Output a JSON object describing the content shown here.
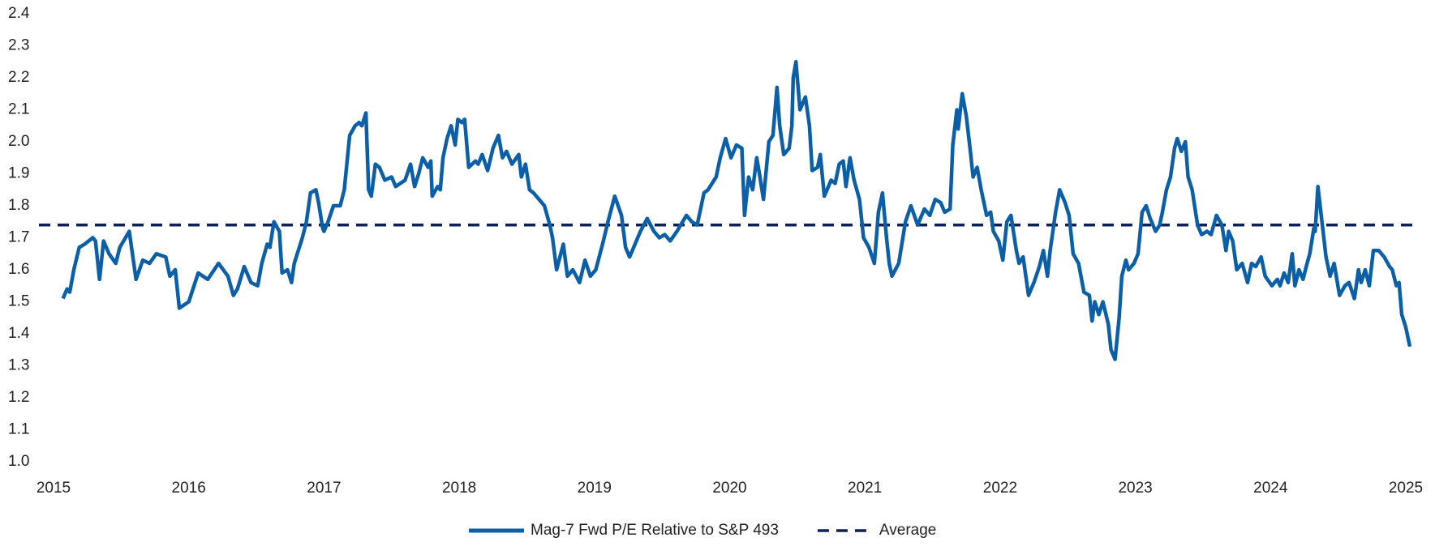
{
  "chart_data": {
    "type": "line",
    "x": [
      2015.07,
      2015.1,
      2015.12,
      2015.15,
      2015.19,
      2015.23,
      2015.29,
      2015.31,
      2015.34,
      2015.37,
      2015.41,
      2015.46,
      2015.49,
      2015.56,
      2015.61,
      2015.66,
      2015.71,
      2015.76,
      2015.83,
      2015.86,
      2015.9,
      2015.93,
      2016.0,
      2016.07,
      2016.14,
      2016.22,
      2016.29,
      2016.33,
      2016.36,
      2016.41,
      2016.46,
      2016.51,
      2016.54,
      2016.58,
      2016.6,
      2016.63,
      2016.67,
      2016.69,
      2016.73,
      2016.76,
      2016.78,
      2016.84,
      2016.87,
      2016.9,
      2016.94,
      2016.96,
      2016.99,
      2017.0,
      2017.03,
      2017.07,
      2017.12,
      2017.15,
      2017.19,
      2017.23,
      2017.26,
      2017.28,
      2017.31,
      2017.33,
      2017.35,
      2017.38,
      2017.41,
      2017.45,
      2017.5,
      2017.53,
      2017.6,
      2017.64,
      2017.67,
      2017.7,
      2017.73,
      2017.77,
      2017.79,
      2017.8,
      2017.84,
      2017.86,
      2017.88,
      2017.91,
      2017.94,
      2017.97,
      2017.99,
      2018.02,
      2018.04,
      2018.07,
      2018.12,
      2018.14,
      2018.17,
      2018.21,
      2018.25,
      2018.29,
      2018.32,
      2018.35,
      2018.39,
      2018.44,
      2018.46,
      2018.49,
      2018.52,
      2018.55,
      2018.63,
      2018.67,
      2018.69,
      2018.72,
      2018.77,
      2018.8,
      2018.84,
      2018.89,
      2018.93,
      2018.97,
      2019.01,
      2019.06,
      2019.1,
      2019.15,
      2019.2,
      2019.23,
      2019.26,
      2019.3,
      2019.34,
      2019.39,
      2019.44,
      2019.48,
      2019.52,
      2019.56,
      2019.61,
      2019.68,
      2019.72,
      2019.76,
      2019.81,
      2019.84,
      2019.9,
      2019.93,
      2019.97,
      2020.01,
      2020.05,
      2020.09,
      2020.11,
      2020.14,
      2020.17,
      2020.2,
      2020.22,
      2020.25,
      2020.29,
      2020.32,
      2020.35,
      2020.37,
      2020.4,
      2020.44,
      2020.46,
      2020.47,
      2020.49,
      2020.52,
      2020.56,
      2020.59,
      2020.61,
      2020.65,
      2020.67,
      2020.7,
      2020.75,
      2020.78,
      2020.81,
      2020.84,
      2020.86,
      2020.89,
      2020.92,
      2020.96,
      2020.99,
      2021.03,
      2021.07,
      2021.1,
      2021.13,
      2021.16,
      2021.18,
      2021.2,
      2021.25,
      2021.3,
      2021.34,
      2021.39,
      2021.44,
      2021.48,
      2021.52,
      2021.56,
      2021.59,
      2021.63,
      2021.65,
      2021.68,
      2021.69,
      2021.72,
      2021.75,
      2021.78,
      2021.8,
      2021.83,
      2021.86,
      2021.9,
      2021.93,
      2021.95,
      2021.99,
      2022.02,
      2022.05,
      2022.08,
      2022.12,
      2022.14,
      2022.17,
      2022.21,
      2022.25,
      2022.29,
      2022.32,
      2022.35,
      2022.37,
      2022.41,
      2022.44,
      2022.48,
      2022.51,
      2022.54,
      2022.58,
      2022.62,
      2022.66,
      2022.68,
      2022.7,
      2022.73,
      2022.76,
      2022.8,
      2022.82,
      2022.85,
      2022.88,
      2022.9,
      2022.93,
      2022.95,
      2022.99,
      2023.02,
      2023.05,
      2023.08,
      2023.11,
      2023.15,
      2023.18,
      2023.2,
      2023.23,
      2023.26,
      2023.29,
      2023.31,
      2023.34,
      2023.37,
      2023.39,
      2023.42,
      2023.46,
      2023.49,
      2023.53,
      2023.56,
      2023.6,
      2023.64,
      2023.67,
      2023.69,
      2023.72,
      2023.75,
      2023.79,
      2023.83,
      2023.86,
      2023.89,
      2023.93,
      2023.96,
      2024.01,
      2024.05,
      2024.07,
      2024.1,
      2024.13,
      2024.16,
      2024.18,
      2024.21,
      2024.24,
      2024.27,
      2024.29,
      2024.32,
      2024.33,
      2024.35,
      2024.38,
      2024.41,
      2024.44,
      2024.47,
      2024.51,
      2024.55,
      2024.58,
      2024.62,
      2024.65,
      2024.67,
      2024.7,
      2024.73,
      2024.76,
      2024.8,
      2024.84,
      2024.88,
      2024.9,
      2024.93,
      2024.95,
      2024.97,
      2025.0,
      2025.03
    ],
    "series": [
      {
        "name": "Mag-7 Fwd P/E Relative to S&P 493",
        "color": "#0b5fa8",
        "values": [
          1.51,
          1.54,
          1.53,
          1.6,
          1.67,
          1.68,
          1.7,
          1.69,
          1.57,
          1.69,
          1.65,
          1.62,
          1.67,
          1.72,
          1.57,
          1.63,
          1.62,
          1.65,
          1.64,
          1.58,
          1.6,
          1.48,
          1.5,
          1.59,
          1.57,
          1.62,
          1.58,
          1.52,
          1.54,
          1.61,
          1.56,
          1.55,
          1.62,
          1.68,
          1.67,
          1.75,
          1.72,
          1.59,
          1.6,
          1.56,
          1.62,
          1.7,
          1.75,
          1.84,
          1.85,
          1.81,
          1.73,
          1.72,
          1.75,
          1.8,
          1.8,
          1.85,
          2.02,
          2.05,
          2.06,
          2.05,
          2.09,
          1.85,
          1.83,
          1.93,
          1.92,
          1.88,
          1.89,
          1.86,
          1.88,
          1.93,
          1.86,
          1.9,
          1.95,
          1.92,
          1.94,
          1.83,
          1.86,
          1.85,
          1.95,
          2.01,
          2.05,
          1.99,
          2.07,
          2.06,
          2.07,
          1.92,
          1.94,
          1.93,
          1.96,
          1.91,
          1.98,
          2.02,
          1.95,
          1.97,
          1.93,
          1.96,
          1.89,
          1.93,
          1.85,
          1.84,
          1.8,
          1.74,
          1.7,
          1.6,
          1.68,
          1.58,
          1.6,
          1.56,
          1.63,
          1.58,
          1.6,
          1.68,
          1.75,
          1.83,
          1.77,
          1.67,
          1.64,
          1.68,
          1.72,
          1.76,
          1.72,
          1.7,
          1.71,
          1.69,
          1.72,
          1.77,
          1.75,
          1.74,
          1.84,
          1.85,
          1.89,
          1.95,
          2.01,
          1.95,
          1.99,
          1.98,
          1.77,
          1.89,
          1.85,
          1.95,
          1.9,
          1.82,
          2.0,
          2.02,
          2.17,
          2.05,
          1.96,
          1.98,
          2.05,
          2.2,
          2.25,
          2.1,
          2.14,
          2.05,
          1.91,
          1.92,
          1.96,
          1.83,
          1.88,
          1.87,
          1.93,
          1.94,
          1.86,
          1.95,
          1.88,
          1.82,
          1.7,
          1.67,
          1.62,
          1.78,
          1.84,
          1.7,
          1.62,
          1.58,
          1.62,
          1.75,
          1.8,
          1.74,
          1.79,
          1.77,
          1.82,
          1.81,
          1.78,
          1.79,
          1.99,
          2.1,
          2.04,
          2.15,
          2.08,
          1.97,
          1.89,
          1.92,
          1.85,
          1.77,
          1.78,
          1.72,
          1.69,
          1.63,
          1.75,
          1.77,
          1.66,
          1.62,
          1.64,
          1.52,
          1.56,
          1.61,
          1.66,
          1.58,
          1.66,
          1.78,
          1.85,
          1.81,
          1.77,
          1.65,
          1.62,
          1.53,
          1.52,
          1.44,
          1.5,
          1.46,
          1.5,
          1.43,
          1.35,
          1.32,
          1.45,
          1.58,
          1.63,
          1.6,
          1.62,
          1.65,
          1.78,
          1.8,
          1.76,
          1.72,
          1.74,
          1.78,
          1.85,
          1.89,
          1.98,
          2.01,
          1.97,
          2.0,
          1.89,
          1.85,
          1.74,
          1.71,
          1.72,
          1.71,
          1.77,
          1.74,
          1.66,
          1.72,
          1.69,
          1.6,
          1.62,
          1.56,
          1.62,
          1.61,
          1.64,
          1.58,
          1.55,
          1.57,
          1.55,
          1.59,
          1.56,
          1.65,
          1.55,
          1.6,
          1.57,
          1.62,
          1.65,
          1.73,
          1.72,
          1.86,
          1.75,
          1.64,
          1.58,
          1.62,
          1.52,
          1.55,
          1.56,
          1.51,
          1.6,
          1.56,
          1.6,
          1.55,
          1.66,
          1.66,
          1.64,
          1.61,
          1.6,
          1.55,
          1.56,
          1.46,
          1.42,
          1.36
        ]
      }
    ],
    "reference_lines": [
      {
        "name": "Average",
        "value": 1.74,
        "color": "#0d2256",
        "dashed": true
      }
    ],
    "xlim": [
      2015,
      2025
    ],
    "xticks": [
      2015,
      2016,
      2017,
      2018,
      2019,
      2020,
      2021,
      2022,
      2023,
      2024,
      2025
    ],
    "ylim": [
      1.0,
      2.4
    ],
    "yticks": [
      {
        "value": 1.0,
        "label": "1.0"
      },
      1.1,
      1.2,
      1.3,
      1.4,
      1.5,
      1.6,
      1.7,
      1.8,
      1.9,
      {
        "value": 2.0,
        "label": "2.0"
      },
      2.1,
      2.2,
      2.3,
      2.4
    ],
    "legend": "bottom"
  }
}
